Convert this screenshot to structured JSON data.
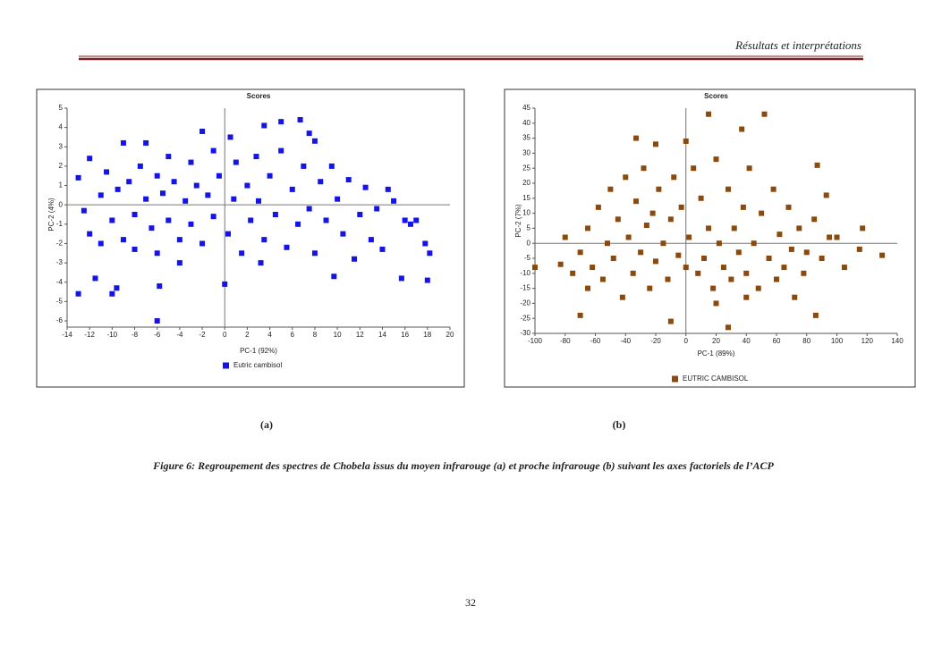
{
  "header": {
    "title": "Résultats et interprétations"
  },
  "chart_data": [
    {
      "type": "scatter",
      "title": "Scores",
      "x_label": "PC-1 (92%)",
      "y_label": "PC-2 (4%)",
      "xlim": [
        -14,
        20
      ],
      "xticks": [
        -14,
        -12,
        -10,
        -8,
        -6,
        -4,
        -2,
        0,
        2,
        4,
        6,
        8,
        10,
        12,
        14,
        16,
        18,
        20
      ],
      "ylim": [
        -6,
        5
      ],
      "yticks": [
        -6,
        -5,
        -4,
        -3,
        -2,
        -1,
        0,
        1,
        2,
        3,
        4,
        5
      ],
      "x": [
        -13,
        -10,
        -9.6,
        -6,
        -5.8,
        0,
        18,
        15.7,
        18.2,
        17.8,
        6.7,
        5,
        3.5,
        -13,
        -12,
        14.5,
        16,
        9.7,
        -9,
        -7,
        -2,
        0.5,
        7.5,
        8,
        3.2,
        -4,
        -11.5,
        -12.5,
        -12,
        -11,
        -11,
        -10.5,
        -10,
        -9.5,
        -9,
        -8.5,
        -8,
        -8,
        -7.5,
        -7,
        -6.5,
        -6,
        -6,
        -5.5,
        -5,
        -5,
        -4.5,
        -4,
        -3.5,
        -3,
        -3,
        -2.5,
        -2,
        -1.5,
        -1,
        -1,
        -0.5,
        0.3,
        0.8,
        1,
        1.5,
        2,
        2.3,
        2.8,
        3,
        3.5,
        4,
        4.5,
        5,
        5.5,
        6,
        6.5,
        7,
        7.5,
        8,
        8.5,
        9,
        9.5,
        10,
        10.5,
        11,
        11.5,
        12,
        12.5,
        13,
        13.5,
        14,
        15,
        16.5,
        17
      ],
      "series": [
        {
          "name": "Eutric cambisol",
          "color": "#1414e6",
          "values": [
            -4.6,
            -4.6,
            -4.3,
            -6,
            -4.2,
            -4.1,
            -3.9,
            -3.8,
            -2.5,
            -2,
            4.4,
            4.3,
            4.1,
            1.4,
            2.4,
            0.8,
            -0.8,
            -3.7,
            3.2,
            3.2,
            3.8,
            3.5,
            3.7,
            3.3,
            -3,
            -3,
            -3.8,
            -0.3,
            -1.5,
            0.5,
            -2,
            1.7,
            -0.8,
            0.8,
            -1.8,
            1.2,
            -0.5,
            -2.3,
            2,
            0.3,
            -1.2,
            1.5,
            -2.5,
            0.6,
            2.5,
            -0.8,
            1.2,
            -1.8,
            0.2,
            2.2,
            -1,
            1,
            -2,
            0.5,
            2.8,
            -0.6,
            1.5,
            -1.5,
            0.3,
            2.2,
            -2.5,
            1,
            -0.8,
            2.5,
            0.2,
            -1.8,
            1.5,
            -0.5,
            2.8,
            -2.2,
            0.8,
            -1,
            2,
            -0.2,
            -2.5,
            1.2,
            -0.8,
            2,
            0.3,
            -1.5,
            1.3,
            -2.8,
            -0.5,
            0.9,
            -1.8,
            -0.2,
            -2.3,
            0.2,
            -1,
            -0.8
          ]
        }
      ]
    },
    {
      "type": "scatter",
      "title": "Scores",
      "x_label": "PC-1 (89%)",
      "y_label": "PC-2 (7%)",
      "xlim": [
        -100,
        140
      ],
      "xticks": [
        -100,
        -80,
        -60,
        -40,
        -20,
        0,
        20,
        40,
        60,
        80,
        100,
        120,
        140
      ],
      "ylim": [
        -30,
        45
      ],
      "yticks": [
        -30,
        -25,
        -20,
        -15,
        -10,
        -5,
        0,
        5,
        10,
        15,
        20,
        25,
        30,
        35,
        40,
        45
      ],
      "x": [
        130,
        117,
        115,
        105,
        93,
        87,
        52,
        15,
        37,
        -33,
        -20,
        0,
        28,
        -10,
        -70,
        86,
        -100,
        -83,
        -80,
        95,
        100,
        -65,
        20,
        40,
        -75,
        -70,
        -65,
        -62,
        -58,
        -55,
        -52,
        -50,
        -48,
        -45,
        -42,
        -40,
        -38,
        -35,
        -33,
        -30,
        -28,
        -26,
        -24,
        -22,
        -20,
        -18,
        -15,
        -12,
        -10,
        -8,
        -5,
        -3,
        0,
        2,
        5,
        8,
        10,
        12,
        15,
        18,
        20,
        22,
        25,
        28,
        30,
        32,
        35,
        38,
        40,
        42,
        45,
        48,
        50,
        55,
        58,
        60,
        62,
        65,
        68,
        70,
        72,
        75,
        78,
        80,
        85,
        90
      ],
      "series": [
        {
          "name": "EUTRIC CAMBISOL",
          "color": "#8b4a0c",
          "values": [
            -4,
            5,
            -2,
            -8,
            16,
            26,
            43,
            43,
            38,
            35,
            33,
            34,
            -28,
            -26,
            -24,
            -24,
            -8,
            -7,
            2,
            2,
            2,
            -15,
            -20,
            -18,
            -10,
            -3,
            5,
            -8,
            12,
            -12,
            0,
            18,
            -5,
            8,
            -18,
            22,
            2,
            -10,
            14,
            -3,
            25,
            6,
            -15,
            10,
            -6,
            18,
            0,
            -12,
            8,
            22,
            -4,
            12,
            -8,
            2,
            25,
            -10,
            15,
            -5,
            5,
            -15,
            28,
            0,
            -8,
            18,
            -12,
            5,
            -3,
            12,
            -10,
            25,
            0,
            -15,
            10,
            -5,
            18,
            -12,
            3,
            -8,
            12,
            -2,
            -18,
            5,
            -10,
            -3,
            8,
            -5
          ]
        }
      ]
    }
  ],
  "figure": {
    "label_a": "(a)",
    "label_b": "(b)",
    "caption": "Figure  6: Regroupement des spectres de Chobela issus du moyen infrarouge (a) et proche infrarouge (b)  suivant les axes factoriels  de l’ACP"
  },
  "footer": {
    "page_number": "32"
  }
}
